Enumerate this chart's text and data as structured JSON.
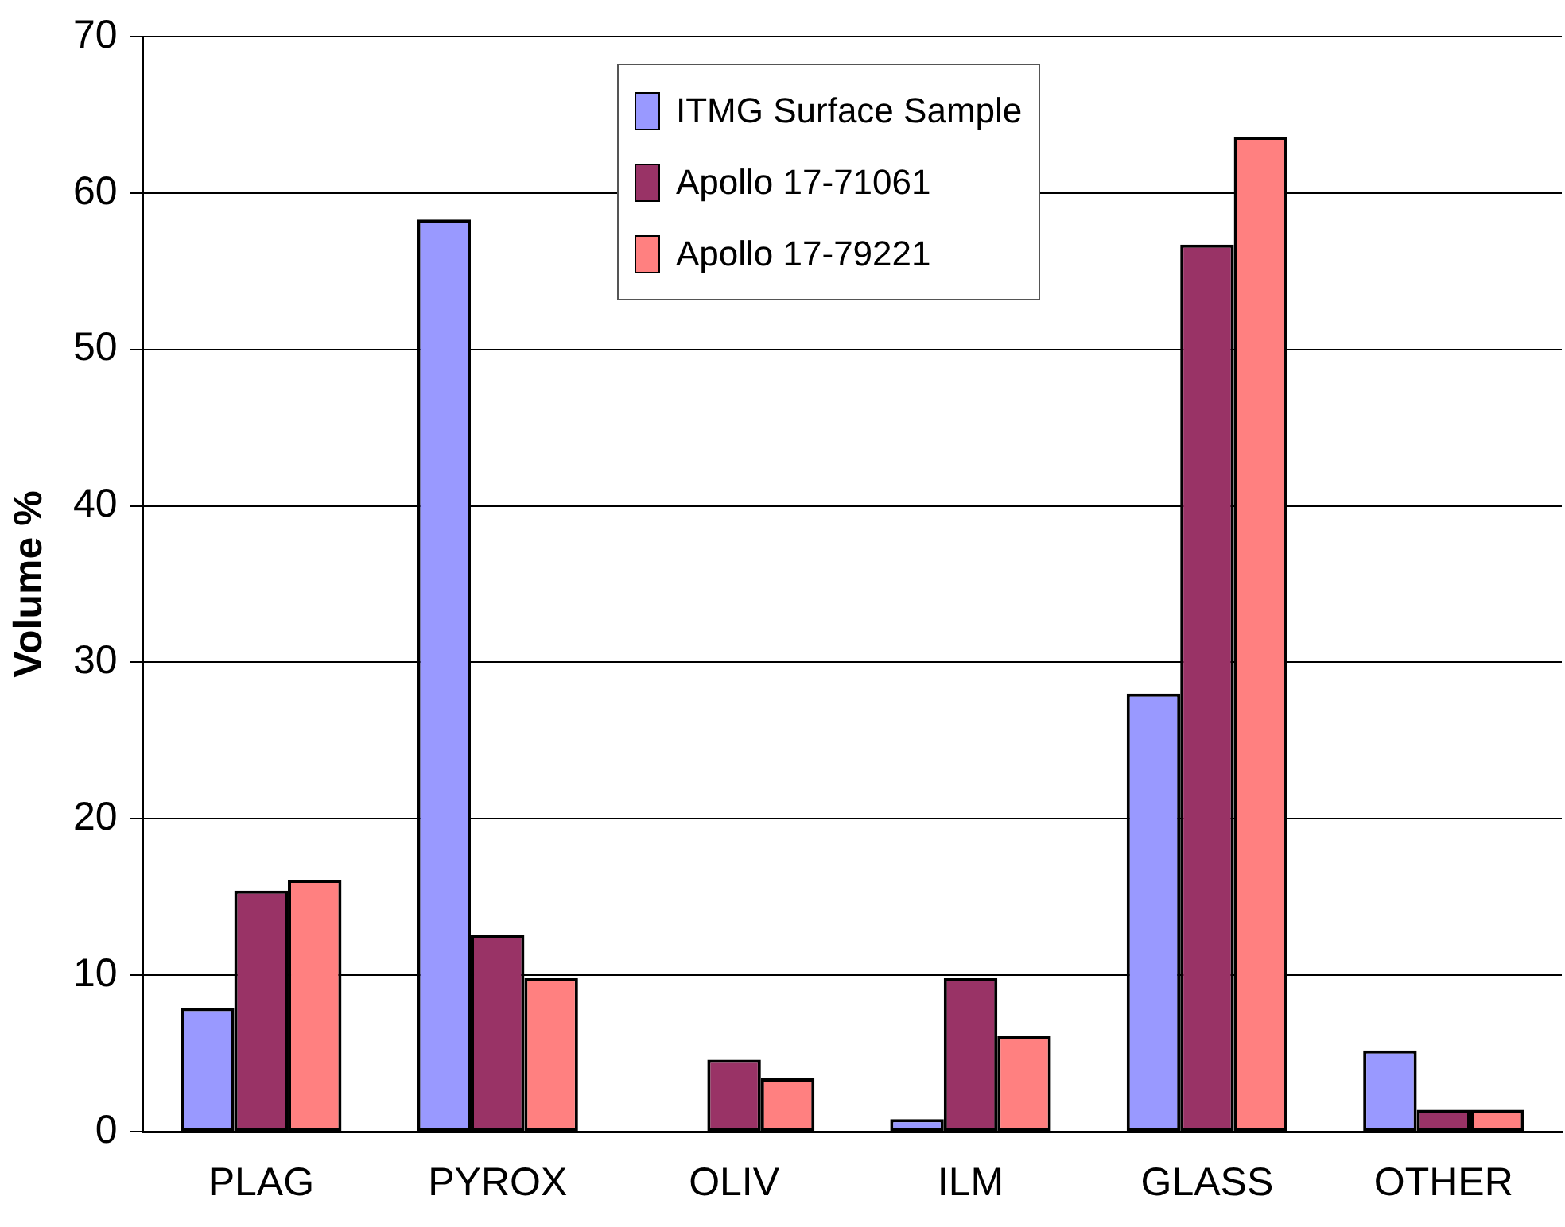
{
  "chart_data": {
    "type": "bar",
    "ylabel": "Volume %",
    "categories": [
      "PLAG",
      "PYROX",
      "OLIV",
      "ILM",
      "GLASS",
      "OTHER"
    ],
    "series": [
      {
        "name": "ITMG Surface Sample",
        "color": "#9999ff",
        "values": [
          7.9,
          58.3,
          0,
          0.8,
          28.0,
          5.2
        ]
      },
      {
        "name": "Apollo 17-71061",
        "color": "#993366",
        "values": [
          15.4,
          12.6,
          4.6,
          9.8,
          56.7,
          1.4
        ]
      },
      {
        "name": "Apollo 17-79221",
        "color": "#ff8080",
        "values": [
          16.1,
          9.8,
          3.4,
          6.1,
          63.6,
          1.4
        ]
      }
    ],
    "ylim": [
      0,
      70
    ],
    "yticks": [
      0,
      10,
      20,
      30,
      40,
      50,
      60,
      70
    ],
    "grid": "y",
    "legend": "top"
  }
}
